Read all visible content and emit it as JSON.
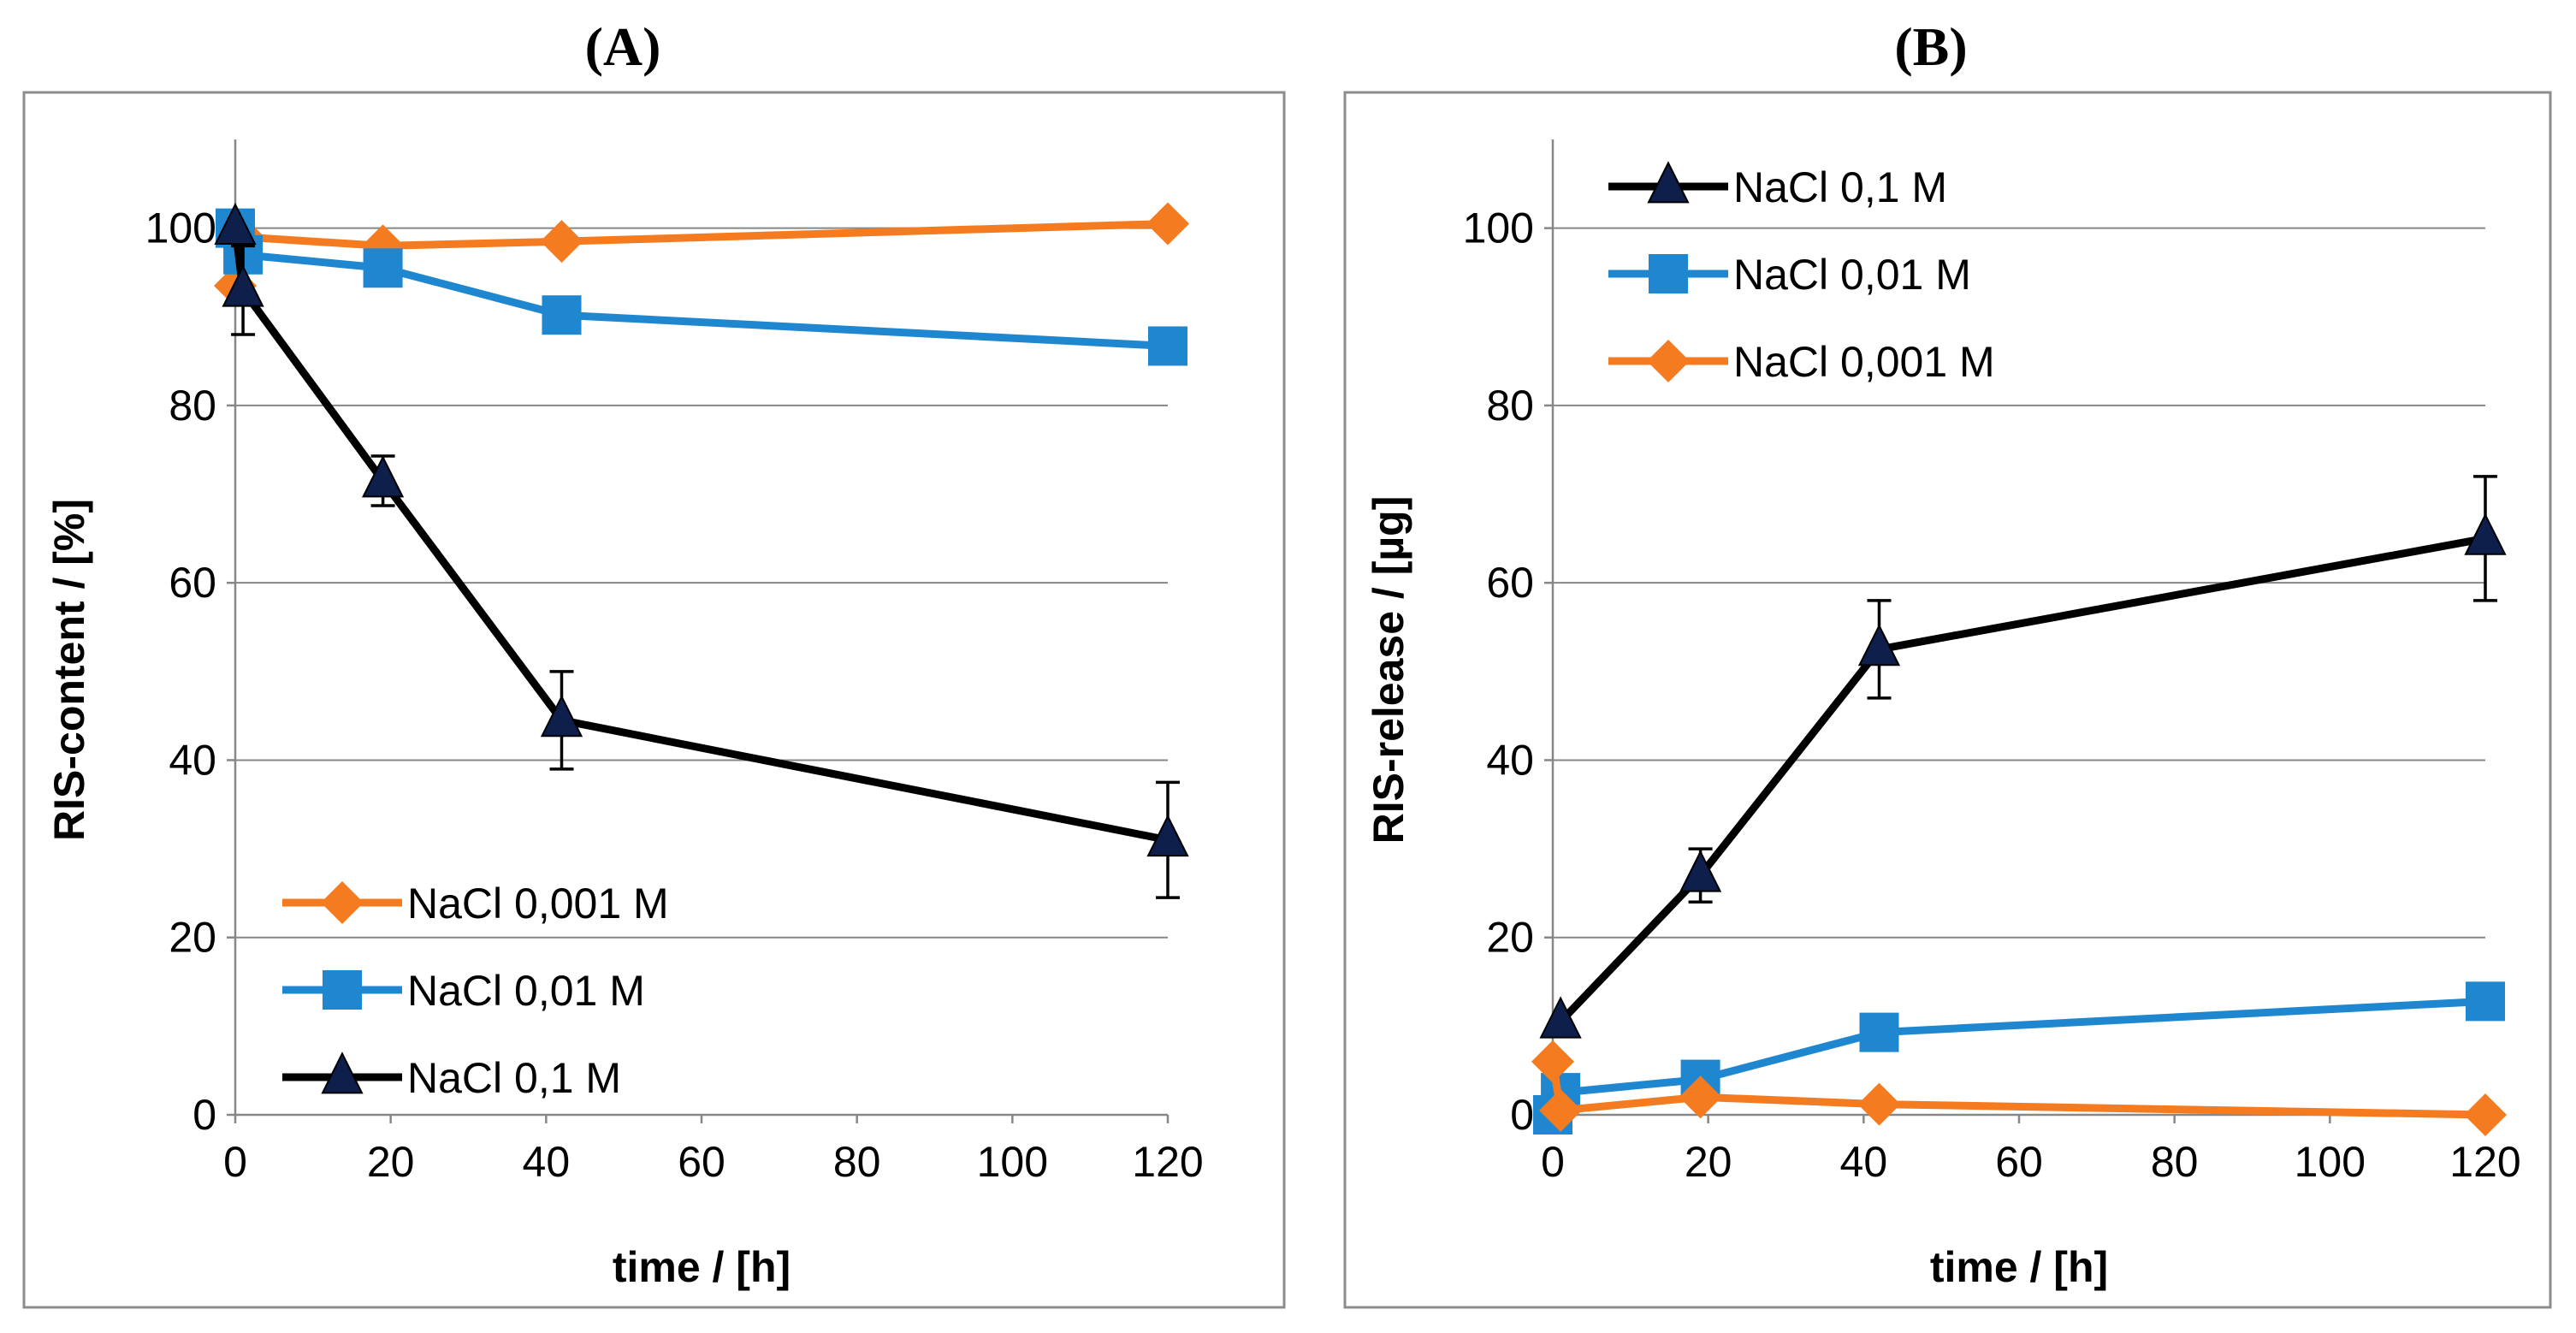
{
  "chart_data": [
    {
      "panel": "(A)",
      "type": "line",
      "xlabel": "time / [h]",
      "ylabel": "RIS-content / [%]",
      "xlim": [
        0,
        120
      ],
      "ylim": [
        0,
        110
      ],
      "xticks": [
        0,
        20,
        40,
        60,
        80,
        100,
        120
      ],
      "yticks": [
        0,
        20,
        40,
        60,
        80,
        100
      ],
      "legend_position": "bottom-left",
      "series": [
        {
          "name": "NaCl 0,001 M",
          "color": "#f47b20",
          "marker": "diamond",
          "x": [
            0,
            1,
            19,
            42,
            120
          ],
          "y": [
            93.5,
            99,
            98,
            98.5,
            100.5
          ],
          "err": [
            0,
            0,
            0,
            0,
            0
          ]
        },
        {
          "name": "NaCl 0,01 M",
          "color": "#1f86d0",
          "marker": "square",
          "x": [
            0,
            1,
            19,
            42,
            120
          ],
          "y": [
            100,
            97,
            95.5,
            90.2,
            86.7
          ],
          "err": [
            0,
            0,
            0,
            0,
            0
          ]
        },
        {
          "name": "NaCl 0,1 M",
          "color": "#000000",
          "marker": "triangle",
          "x": [
            0,
            1,
            19,
            42,
            120
          ],
          "y": [
            100,
            93,
            71.5,
            44.5,
            31
          ],
          "err": [
            0,
            5,
            2.8,
            5.5,
            6.5
          ]
        }
      ]
    },
    {
      "panel": "(B)",
      "type": "line",
      "xlabel": "time / [h]",
      "ylabel": "RIS-release / [µg]",
      "xlim": [
        0,
        120
      ],
      "ylim": [
        0,
        110
      ],
      "xticks": [
        0,
        20,
        40,
        60,
        80,
        100,
        120
      ],
      "yticks": [
        0,
        20,
        40,
        60,
        80,
        100
      ],
      "legend_position": "top-left",
      "series": [
        {
          "name": "NaCl 0,1 M",
          "color": "#000000",
          "marker": "triangle",
          "x": [
            1,
            19,
            42,
            120
          ],
          "y": [
            10.5,
            27,
            52.5,
            65
          ],
          "err": [
            0,
            3,
            5.5,
            7
          ]
        },
        {
          "name": "NaCl 0,01 M",
          "color": "#1f86d0",
          "marker": "square",
          "x": [
            0,
            1,
            19,
            42,
            120
          ],
          "y": [
            0,
            2.5,
            4,
            9.3,
            12.8
          ],
          "err": [
            0,
            0,
            0,
            0,
            0
          ]
        },
        {
          "name": "NaCl 0,001 M",
          "color": "#f47b20",
          "marker": "diamond",
          "x": [
            0,
            1,
            19,
            42,
            120
          ],
          "y": [
            6,
            0.5,
            2,
            1.2,
            0
          ],
          "err": [
            0,
            0,
            0,
            0,
            0
          ]
        }
      ]
    }
  ]
}
